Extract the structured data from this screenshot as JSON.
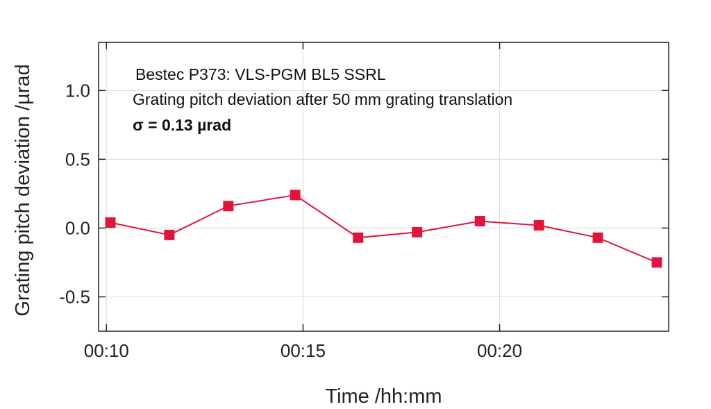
{
  "chart_data": {
    "type": "line",
    "xlabel": "Time /hh:mm",
    "ylabel": "Grating pitch deviation /µrad",
    "x_tick_labels": [
      "00:10",
      "00:15",
      "00:20"
    ],
    "x_ticks_minutes": [
      10,
      15,
      20
    ],
    "y_ticks": [
      1.0,
      0.5,
      0.0,
      -0.5
    ],
    "y_tick_labels": [
      "1.0",
      "0.5",
      "0.0",
      "-0.5"
    ],
    "xlim_minutes": [
      9.8,
      24.3
    ],
    "ylim": [
      -0.75,
      1.35
    ],
    "grid": true,
    "annotations": [
      "Bestec P373: VLS-PGM BL5 SSRL",
      "Grating pitch deviation after 50 mm grating translation",
      "σ = 0.13 µrad"
    ],
    "series": [
      {
        "x_minutes": [
          10.1,
          11.6,
          13.1,
          14.8,
          16.4,
          17.9,
          19.5,
          21.0,
          22.5,
          24.0
        ],
        "y": [
          0.04,
          -0.05,
          0.16,
          0.24,
          -0.07,
          -0.03,
          0.05,
          0.02,
          -0.07,
          -0.25
        ],
        "color": "#e0143c"
      }
    ]
  }
}
